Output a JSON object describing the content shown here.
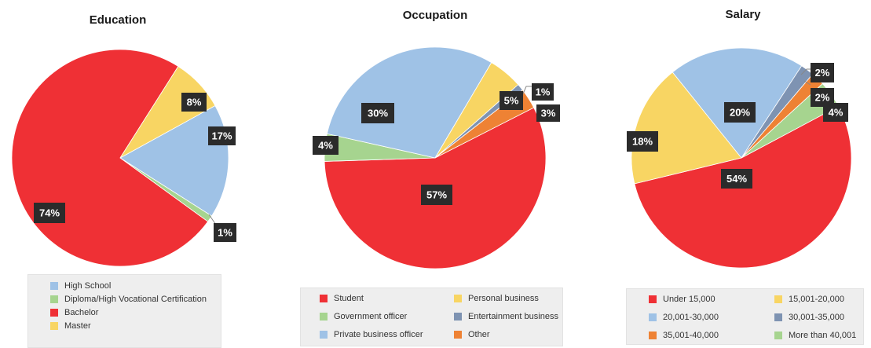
{
  "chart_data": [
    {
      "type": "pie",
      "title": "Education",
      "slices": [
        {
          "label": "High School",
          "value": 17,
          "pct_label": "17%",
          "color": "#9fc2e6"
        },
        {
          "label": "Diploma/High Vocational Certification",
          "value": 1,
          "pct_label": "1%",
          "color": "#a6d48f"
        },
        {
          "label": "Bachelor",
          "value": 74,
          "pct_label": "74%",
          "color": "#ef3035"
        },
        {
          "label": "Master",
          "value": 8,
          "pct_label": "8%",
          "color": "#f8d563"
        }
      ],
      "legend_placement": "bottom"
    },
    {
      "type": "pie",
      "title": "Occupation",
      "slices": [
        {
          "label": "Student",
          "value": 57,
          "pct_label": "57%",
          "color": "#ef3035"
        },
        {
          "label": "Government officer",
          "value": 4,
          "pct_label": "4%",
          "color": "#a6d48f"
        },
        {
          "label": "Private business officer",
          "value": 30,
          "pct_label": "30%",
          "color": "#9fc2e6"
        },
        {
          "label": "Personal business",
          "value": 5,
          "pct_label": "5%",
          "color": "#f8d563"
        },
        {
          "label": "Entertainment business",
          "value": 1,
          "pct_label": "1%",
          "color": "#7e93b2"
        },
        {
          "label": "Other",
          "value": 3,
          "pct_label": "3%",
          "color": "#ee8234"
        }
      ],
      "legend_placement": "bottom"
    },
    {
      "type": "pie",
      "title": "Salary",
      "slices": [
        {
          "label": "Under 15,000",
          "value": 54,
          "pct_label": "54%",
          "color": "#ef3035"
        },
        {
          "label": "15,001-20,000",
          "value": 18,
          "pct_label": "18%",
          "color": "#f8d563"
        },
        {
          "label": "20,001-30,000",
          "value": 20,
          "pct_label": "20%",
          "color": "#9fc2e6"
        },
        {
          "label": "30,001-35,000",
          "value": 2,
          "pct_label": "2%",
          "color": "#7e93b2"
        },
        {
          "label": "35,001-40,000",
          "value": 2,
          "pct_label": "2%",
          "color": "#ee8234"
        },
        {
          "label": "More than 40,001",
          "value": 4,
          "pct_label": "4%",
          "color": "#a6d48f"
        }
      ],
      "legend_placement": "bottom"
    }
  ]
}
